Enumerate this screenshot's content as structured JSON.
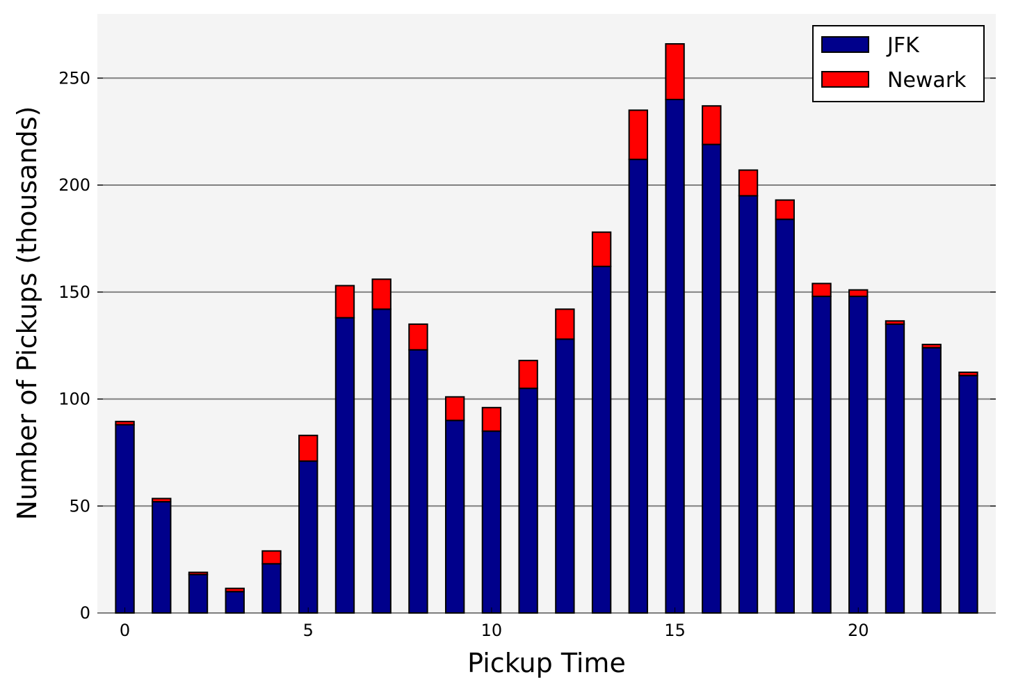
{
  "chart_data": {
    "type": "bar",
    "stacked": true,
    "title": "",
    "xlabel": "Pickup Time",
    "ylabel": "Number of Pickups (thousands)",
    "x": [
      0,
      1,
      2,
      3,
      4,
      5,
      6,
      7,
      8,
      9,
      10,
      11,
      12,
      13,
      14,
      15,
      16,
      17,
      18,
      19,
      20,
      21,
      22,
      23
    ],
    "xticks": [
      0,
      5,
      10,
      15,
      20
    ],
    "xtick_labels": [
      "0",
      "5",
      "10",
      "15",
      "20"
    ],
    "yticks": [
      0,
      50,
      100,
      150,
      200,
      250
    ],
    "ytick_labels": [
      "0",
      "50",
      "100",
      "150",
      "200",
      "250"
    ],
    "xlim": [
      -0.75,
      23.75
    ],
    "ylim": [
      0,
      280
    ],
    "grid": "horizontal",
    "background": "#f4f4f4",
    "legend": {
      "placement": "top-right"
    },
    "series": [
      {
        "name": "JFK",
        "color": "#00008b",
        "values": [
          88,
          52,
          18,
          10,
          23,
          71,
          138,
          142,
          123,
          90,
          85,
          105,
          128,
          162,
          212,
          240,
          219,
          195,
          184,
          148,
          148,
          135,
          124,
          111
        ]
      },
      {
        "name": "Newark",
        "color": "#ff0000",
        "values": [
          1.5,
          1.5,
          1,
          1.5,
          6,
          12,
          15,
          14,
          12,
          11,
          11,
          13,
          14,
          16,
          23,
          26,
          18,
          12,
          9,
          6,
          3,
          1.5,
          1.5,
          1.5
        ]
      }
    ]
  }
}
